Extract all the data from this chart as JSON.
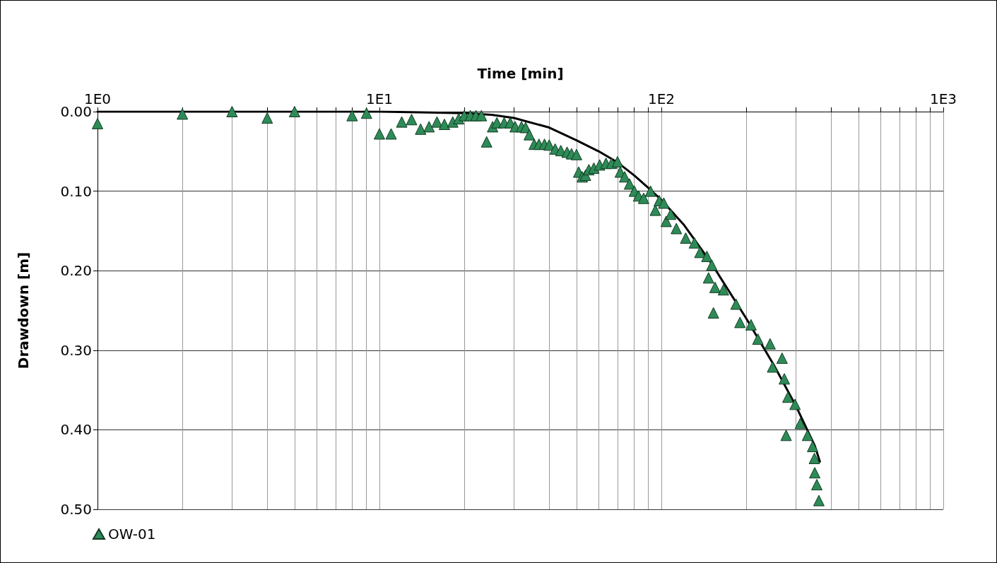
{
  "chart_data": {
    "type": "scatter",
    "xlabel": "Time [min]",
    "ylabel": "Drawdown [m]",
    "log": "x",
    "grid": true,
    "legend": "bottom left",
    "xlim": [
      1,
      1000
    ],
    "xticks": [
      {
        "value": 1,
        "label": "1E0"
      },
      {
        "value": 2,
        "label": null
      },
      {
        "value": 3,
        "label": null
      },
      {
        "value": 4,
        "label": null
      },
      {
        "value": 5,
        "label": null
      },
      {
        "value": 6,
        "label": null
      },
      {
        "value": 7,
        "label": null
      },
      {
        "value": 8,
        "label": null
      },
      {
        "value": 9,
        "label": null
      },
      {
        "value": 10,
        "label": "1E1"
      },
      {
        "value": 20,
        "label": null
      },
      {
        "value": 30,
        "label": null
      },
      {
        "value": 40,
        "label": null
      },
      {
        "value": 50,
        "label": null
      },
      {
        "value": 60,
        "label": null
      },
      {
        "value": 70,
        "label": null
      },
      {
        "value": 80,
        "label": null
      },
      {
        "value": 90,
        "label": null
      },
      {
        "value": 100,
        "label": "1E2"
      },
      {
        "value": 200,
        "label": null
      },
      {
        "value": 300,
        "label": null
      },
      {
        "value": 400,
        "label": null
      },
      {
        "value": 500,
        "label": null
      },
      {
        "value": 600,
        "label": null
      },
      {
        "value": 700,
        "label": null
      },
      {
        "value": 800,
        "label": null
      },
      {
        "value": 900,
        "label": null
      },
      {
        "value": 1000,
        "label": "1E3"
      }
    ],
    "ylim": [
      0.5,
      0
    ],
    "yticks": [
      {
        "value": 0,
        "label": "0.00"
      },
      {
        "value": 0.1,
        "label": "0.10"
      },
      {
        "value": 0.2,
        "label": "0.20"
      },
      {
        "value": 0.3,
        "label": "0.30"
      },
      {
        "value": 0.4,
        "label": "0.40"
      },
      {
        "value": 0.5,
        "label": "0.50"
      }
    ],
    "series": [
      {
        "name": "OW-01",
        "marker": "triangle",
        "color": "#2e8b57",
        "x": [
          1,
          2,
          3,
          4,
          5,
          8,
          9,
          10,
          11,
          12,
          13,
          14,
          15,
          16,
          17,
          18.2,
          19.1,
          20,
          21,
          22,
          23,
          24,
          25.2,
          26.1,
          27.7,
          29.1,
          30.3,
          31.9,
          33,
          34,
          35.4,
          36.8,
          38.5,
          40,
          42,
          44,
          46.3,
          48,
          50,
          50.9,
          52.4,
          53.8,
          55.3,
          57.6,
          60.4,
          63.6,
          66.6,
          69.9,
          71.5,
          74.1,
          77.1,
          80.2,
          83,
          86.5,
          91.5,
          95.2,
          98.3,
          102,
          104,
          108,
          113,
          122,
          131,
          137,
          145,
          147,
          151,
          153,
          155,
          166,
          184,
          190,
          208,
          220,
          243,
          248,
          268,
          273,
          277,
          281,
          298,
          311,
          330,
          344,
          349,
          350,
          356,
          362
        ],
        "values": [
          0.015,
          0.003,
          0,
          0.008,
          0,
          0.005,
          0.002,
          0.028,
          0.028,
          0.013,
          0.01,
          0.022,
          0.019,
          0.013,
          0.016,
          0.013,
          0.009,
          0.005,
          0.005,
          0.005,
          0.005,
          0.038,
          0.019,
          0.014,
          0.014,
          0.014,
          0.019,
          0.019,
          0.02,
          0.029,
          0.041,
          0.041,
          0.041,
          0.042,
          0.047,
          0.049,
          0.051,
          0.053,
          0.054,
          0.076,
          0.082,
          0.08,
          0.073,
          0.071,
          0.067,
          0.065,
          0.065,
          0.063,
          0.076,
          0.082,
          0.091,
          0.1,
          0.106,
          0.109,
          0.1,
          0.124,
          0.112,
          0.115,
          0.138,
          0.129,
          0.147,
          0.159,
          0.165,
          0.177,
          0.182,
          0.209,
          0.193,
          0.253,
          0.221,
          0.224,
          0.242,
          0.265,
          0.268,
          0.286,
          0.292,
          0.321,
          0.31,
          0.336,
          0.407,
          0.359,
          0.368,
          0.392,
          0.407,
          0.421,
          0.436,
          0.454,
          0.469,
          0.489
        ]
      },
      {
        "type": "line",
        "marker": "none",
        "line_style": "solid",
        "color": "#000000",
        "x": [
          1,
          10,
          15,
          20,
          25,
          30,
          40,
          50,
          60,
          70,
          80,
          90,
          100,
          120,
          150,
          200,
          250,
          300,
          350,
          365
        ],
        "values": [
          0,
          0,
          0.001,
          0.002,
          0.004,
          0.008,
          0.02,
          0.036,
          0.05,
          0.064,
          0.08,
          0.096,
          0.111,
          0.142,
          0.19,
          0.26,
          0.318,
          0.37,
          0.42,
          0.44
        ]
      }
    ]
  }
}
